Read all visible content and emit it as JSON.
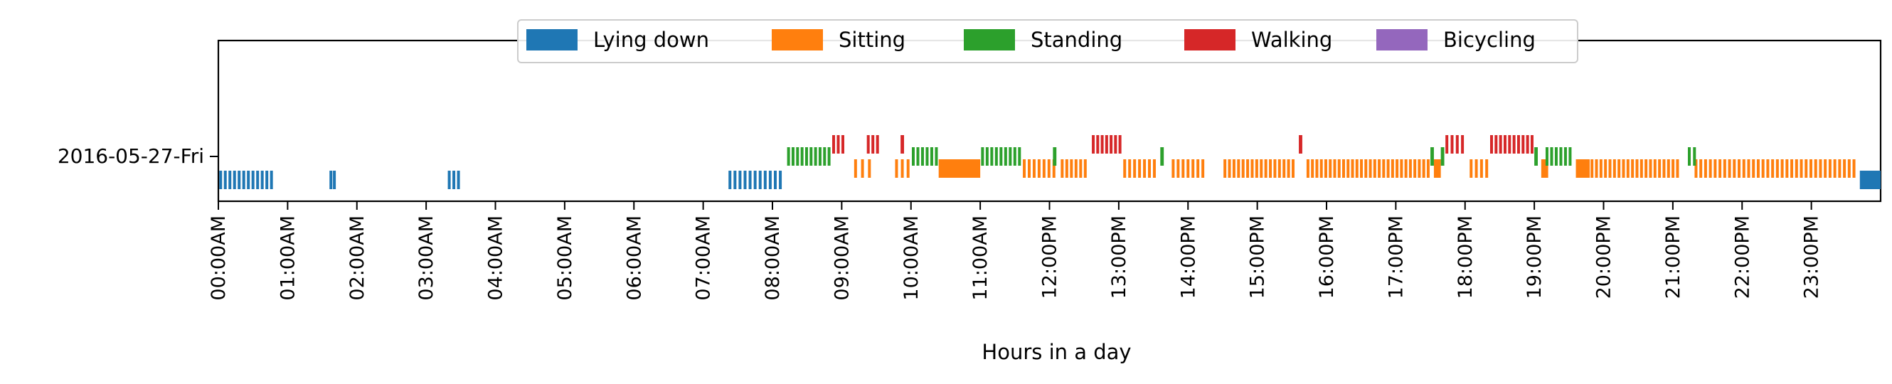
{
  "chart_data": {
    "type": "timeline",
    "x_unit": "hours",
    "xlim": [
      0,
      24
    ],
    "xlabel": "Hours in a day",
    "ylabel": "",
    "day_label": "2016-05-27-Fri",
    "grid": false,
    "legend_position": "top-center",
    "xticks": [
      {
        "value": 0,
        "label": "00:00AM"
      },
      {
        "value": 1,
        "label": "01:00AM"
      },
      {
        "value": 2,
        "label": "02:00AM"
      },
      {
        "value": 3,
        "label": "03:00AM"
      },
      {
        "value": 4,
        "label": "04:00AM"
      },
      {
        "value": 5,
        "label": "05:00AM"
      },
      {
        "value": 6,
        "label": "06:00AM"
      },
      {
        "value": 7,
        "label": "07:00AM"
      },
      {
        "value": 8,
        "label": "08:00AM"
      },
      {
        "value": 9,
        "label": "09:00AM"
      },
      {
        "value": 10,
        "label": "10:00AM"
      },
      {
        "value": 11,
        "label": "11:00AM"
      },
      {
        "value": 12,
        "label": "12:00PM"
      },
      {
        "value": 13,
        "label": "13:00PM"
      },
      {
        "value": 14,
        "label": "14:00PM"
      },
      {
        "value": 15,
        "label": "15:00PM"
      },
      {
        "value": 16,
        "label": "16:00PM"
      },
      {
        "value": 17,
        "label": "17:00PM"
      },
      {
        "value": 18,
        "label": "18:00PM"
      },
      {
        "value": 19,
        "label": "19:00PM"
      },
      {
        "value": 20,
        "label": "20:00PM"
      },
      {
        "value": 21,
        "label": "21:00PM"
      },
      {
        "value": 22,
        "label": "22:00PM"
      },
      {
        "value": 23,
        "label": "23:00PM"
      }
    ],
    "series": [
      {
        "name": "Lying down",
        "color": "#1f77b4",
        "level": 0,
        "intervals": [
          [
            0.0,
            0.8,
            12
          ],
          [
            1.6,
            1.7,
            2
          ],
          [
            3.3,
            3.5,
            3
          ],
          [
            7.35,
            8.15,
            11
          ],
          [
            23.7,
            24.0,
            1
          ]
        ]
      },
      {
        "name": "Sitting",
        "color": "#ff7f0e",
        "level": 1,
        "intervals": [
          [
            9.15,
            9.45,
            3
          ],
          [
            9.75,
            10.0,
            3
          ],
          [
            10.4,
            11.0,
            1
          ],
          [
            11.6,
            12.1,
            7
          ],
          [
            12.15,
            12.55,
            6
          ],
          [
            13.05,
            13.55,
            7
          ],
          [
            13.75,
            14.25,
            7
          ],
          [
            14.5,
            15.55,
            16
          ],
          [
            15.7,
            17.5,
            28
          ],
          [
            17.55,
            17.65,
            1
          ],
          [
            18.05,
            18.35,
            4
          ],
          [
            19.1,
            19.2,
            1
          ],
          [
            19.6,
            19.8,
            1
          ],
          [
            19.8,
            21.1,
            20
          ],
          [
            21.3,
            23.65,
            34
          ]
        ]
      },
      {
        "name": "Standing",
        "color": "#2ca02c",
        "level": 2,
        "intervals": [
          [
            8.2,
            8.85,
            10
          ],
          [
            10.0,
            10.4,
            6
          ],
          [
            11.0,
            11.6,
            9
          ],
          [
            12.05,
            12.1,
            1
          ],
          [
            13.6,
            13.65,
            1
          ],
          [
            17.5,
            17.55,
            1
          ],
          [
            17.65,
            17.7,
            1
          ],
          [
            19.0,
            19.05,
            1
          ],
          [
            19.15,
            19.55,
            6
          ],
          [
            21.2,
            21.35,
            2
          ]
        ]
      },
      {
        "name": "Walking",
        "color": "#d62728",
        "level": 3,
        "intervals": [
          [
            8.85,
            9.05,
            3
          ],
          [
            9.35,
            9.55,
            3
          ],
          [
            9.85,
            9.9,
            1
          ],
          [
            12.6,
            13.05,
            7
          ],
          [
            15.6,
            15.65,
            1
          ],
          [
            17.7,
            18.0,
            4
          ],
          [
            18.35,
            19.0,
            10
          ]
        ]
      },
      {
        "name": "Bicycling",
        "color": "#9467bd",
        "level": 4,
        "intervals": []
      }
    ]
  }
}
